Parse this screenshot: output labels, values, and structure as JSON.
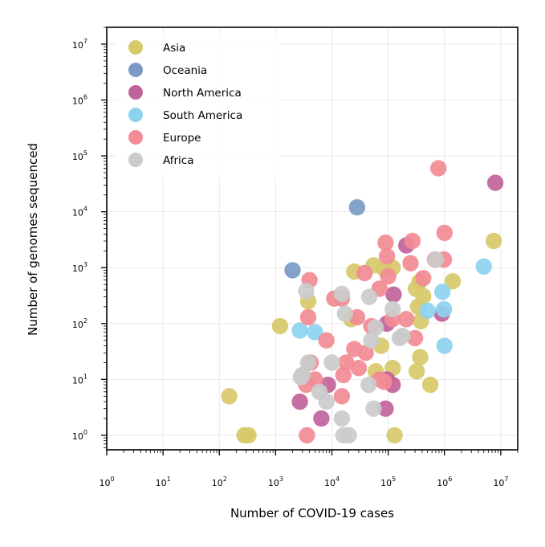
{
  "chart_data": {
    "type": "scatter",
    "title": "",
    "xlabel": "Number of COVID-19 cases",
    "ylabel": "Number of genomes sequenced",
    "xscale": "log",
    "yscale": "log",
    "xlim": [
      1,
      20000000
    ],
    "ylim": [
      0.55,
      20000000
    ],
    "grid": true,
    "legend": "top-left",
    "x_ticks": [
      {
        "value": 1,
        "base": "10",
        "exp": "0"
      },
      {
        "value": 10,
        "base": "10",
        "exp": "1"
      },
      {
        "value": 100,
        "base": "10",
        "exp": "2"
      },
      {
        "value": 1000,
        "base": "10",
        "exp": "3"
      },
      {
        "value": 10000,
        "base": "10",
        "exp": "4"
      },
      {
        "value": 100000,
        "base": "10",
        "exp": "5"
      },
      {
        "value": 1000000,
        "base": "10",
        "exp": "6"
      },
      {
        "value": 10000000,
        "base": "10",
        "exp": "7"
      }
    ],
    "y_ticks": [
      {
        "value": 1,
        "base": "10",
        "exp": "0"
      },
      {
        "value": 10,
        "base": "10",
        "exp": "1"
      },
      {
        "value": 100,
        "base": "10",
        "exp": "2"
      },
      {
        "value": 1000,
        "base": "10",
        "exp": "3"
      },
      {
        "value": 10000,
        "base": "10",
        "exp": "4"
      },
      {
        "value": 100000,
        "base": "10",
        "exp": "5"
      },
      {
        "value": 1000000,
        "base": "10",
        "exp": "6"
      },
      {
        "value": 10000000,
        "base": "10",
        "exp": "7"
      }
    ],
    "series": [
      {
        "name": "Asia",
        "color": "#d8c96a",
        "points": [
          [
            150,
            5
          ],
          [
            280,
            1
          ],
          [
            330,
            1
          ],
          [
            1200,
            90
          ],
          [
            3800,
            250
          ],
          [
            25000,
            850
          ],
          [
            55000,
            1100
          ],
          [
            85000,
            950
          ],
          [
            120000,
            1000
          ],
          [
            310000,
            420
          ],
          [
            360000,
            560
          ],
          [
            420000,
            310
          ],
          [
            340000,
            200
          ],
          [
            380000,
            110
          ],
          [
            320000,
            14
          ],
          [
            370000,
            25
          ],
          [
            560000,
            8
          ],
          [
            1400000,
            570
          ],
          [
            7500000,
            3000
          ],
          [
            130000,
            1
          ],
          [
            60000,
            14
          ],
          [
            120000,
            16
          ],
          [
            22000,
            120
          ],
          [
            75000,
            40
          ]
        ]
      },
      {
        "name": "Oceania",
        "color": "#7b9bc4",
        "points": [
          [
            2000,
            900
          ],
          [
            28000,
            12000
          ]
        ]
      },
      {
        "name": "North America",
        "color": "#c0639a",
        "points": [
          [
            8000000,
            33000
          ],
          [
            210000,
            2500
          ],
          [
            125000,
            330
          ],
          [
            95000,
            100
          ],
          [
            900000,
            150
          ],
          [
            8500,
            8
          ],
          [
            6500,
            2
          ],
          [
            2700,
            4
          ],
          [
            95000,
            10
          ],
          [
            120000,
            8
          ],
          [
            90000,
            3
          ]
        ]
      },
      {
        "name": "South America",
        "color": "#8dd3f0",
        "points": [
          [
            5000000,
            1050
          ],
          [
            920000,
            370
          ],
          [
            980000,
            180
          ],
          [
            500000,
            170
          ],
          [
            1000000,
            40
          ],
          [
            2700,
            75
          ],
          [
            5000,
            70
          ]
        ]
      },
      {
        "name": "Europe",
        "color": "#f28b95",
        "points": [
          [
            780000,
            60000
          ],
          [
            1000000,
            4200
          ],
          [
            270000,
            3000
          ],
          [
            90000,
            2800
          ],
          [
            95000,
            1600
          ],
          [
            250000,
            1200
          ],
          [
            980000,
            1400
          ],
          [
            680000,
            1400
          ],
          [
            38000,
            800
          ],
          [
            100000,
            700
          ],
          [
            420000,
            650
          ],
          [
            4000,
            600
          ],
          [
            70000,
            420
          ],
          [
            11000,
            280
          ],
          [
            15000,
            280
          ],
          [
            28000,
            130
          ],
          [
            3800,
            130
          ],
          [
            50000,
            90
          ],
          [
            120000,
            120
          ],
          [
            210000,
            120
          ],
          [
            8000,
            50
          ],
          [
            300000,
            55
          ],
          [
            4200,
            20
          ],
          [
            25000,
            35
          ],
          [
            40000,
            30
          ],
          [
            18000,
            20
          ],
          [
            30000,
            16
          ],
          [
            16000,
            12
          ],
          [
            3000,
            12
          ],
          [
            3500,
            8
          ],
          [
            5000,
            10
          ],
          [
            15000,
            5
          ],
          [
            3600,
            1
          ],
          [
            70000,
            10
          ],
          [
            85000,
            9
          ]
        ]
      },
      {
        "name": "Africa",
        "color": "#cbcbcb",
        "points": [
          [
            3500,
            380
          ],
          [
            15000,
            340
          ],
          [
            17000,
            150
          ],
          [
            46000,
            300
          ],
          [
            60000,
            85
          ],
          [
            120000,
            180
          ],
          [
            180000,
            60
          ],
          [
            160000,
            55
          ],
          [
            3000,
            12
          ],
          [
            2800,
            11
          ],
          [
            3800,
            20
          ],
          [
            6000,
            6
          ],
          [
            8000,
            4
          ],
          [
            10000,
            20
          ],
          [
            15000,
            2
          ],
          [
            16000,
            1
          ],
          [
            20000,
            1
          ],
          [
            45000,
            8
          ],
          [
            55000,
            3
          ],
          [
            50000,
            50
          ],
          [
            700000,
            1400
          ]
        ]
      }
    ]
  }
}
